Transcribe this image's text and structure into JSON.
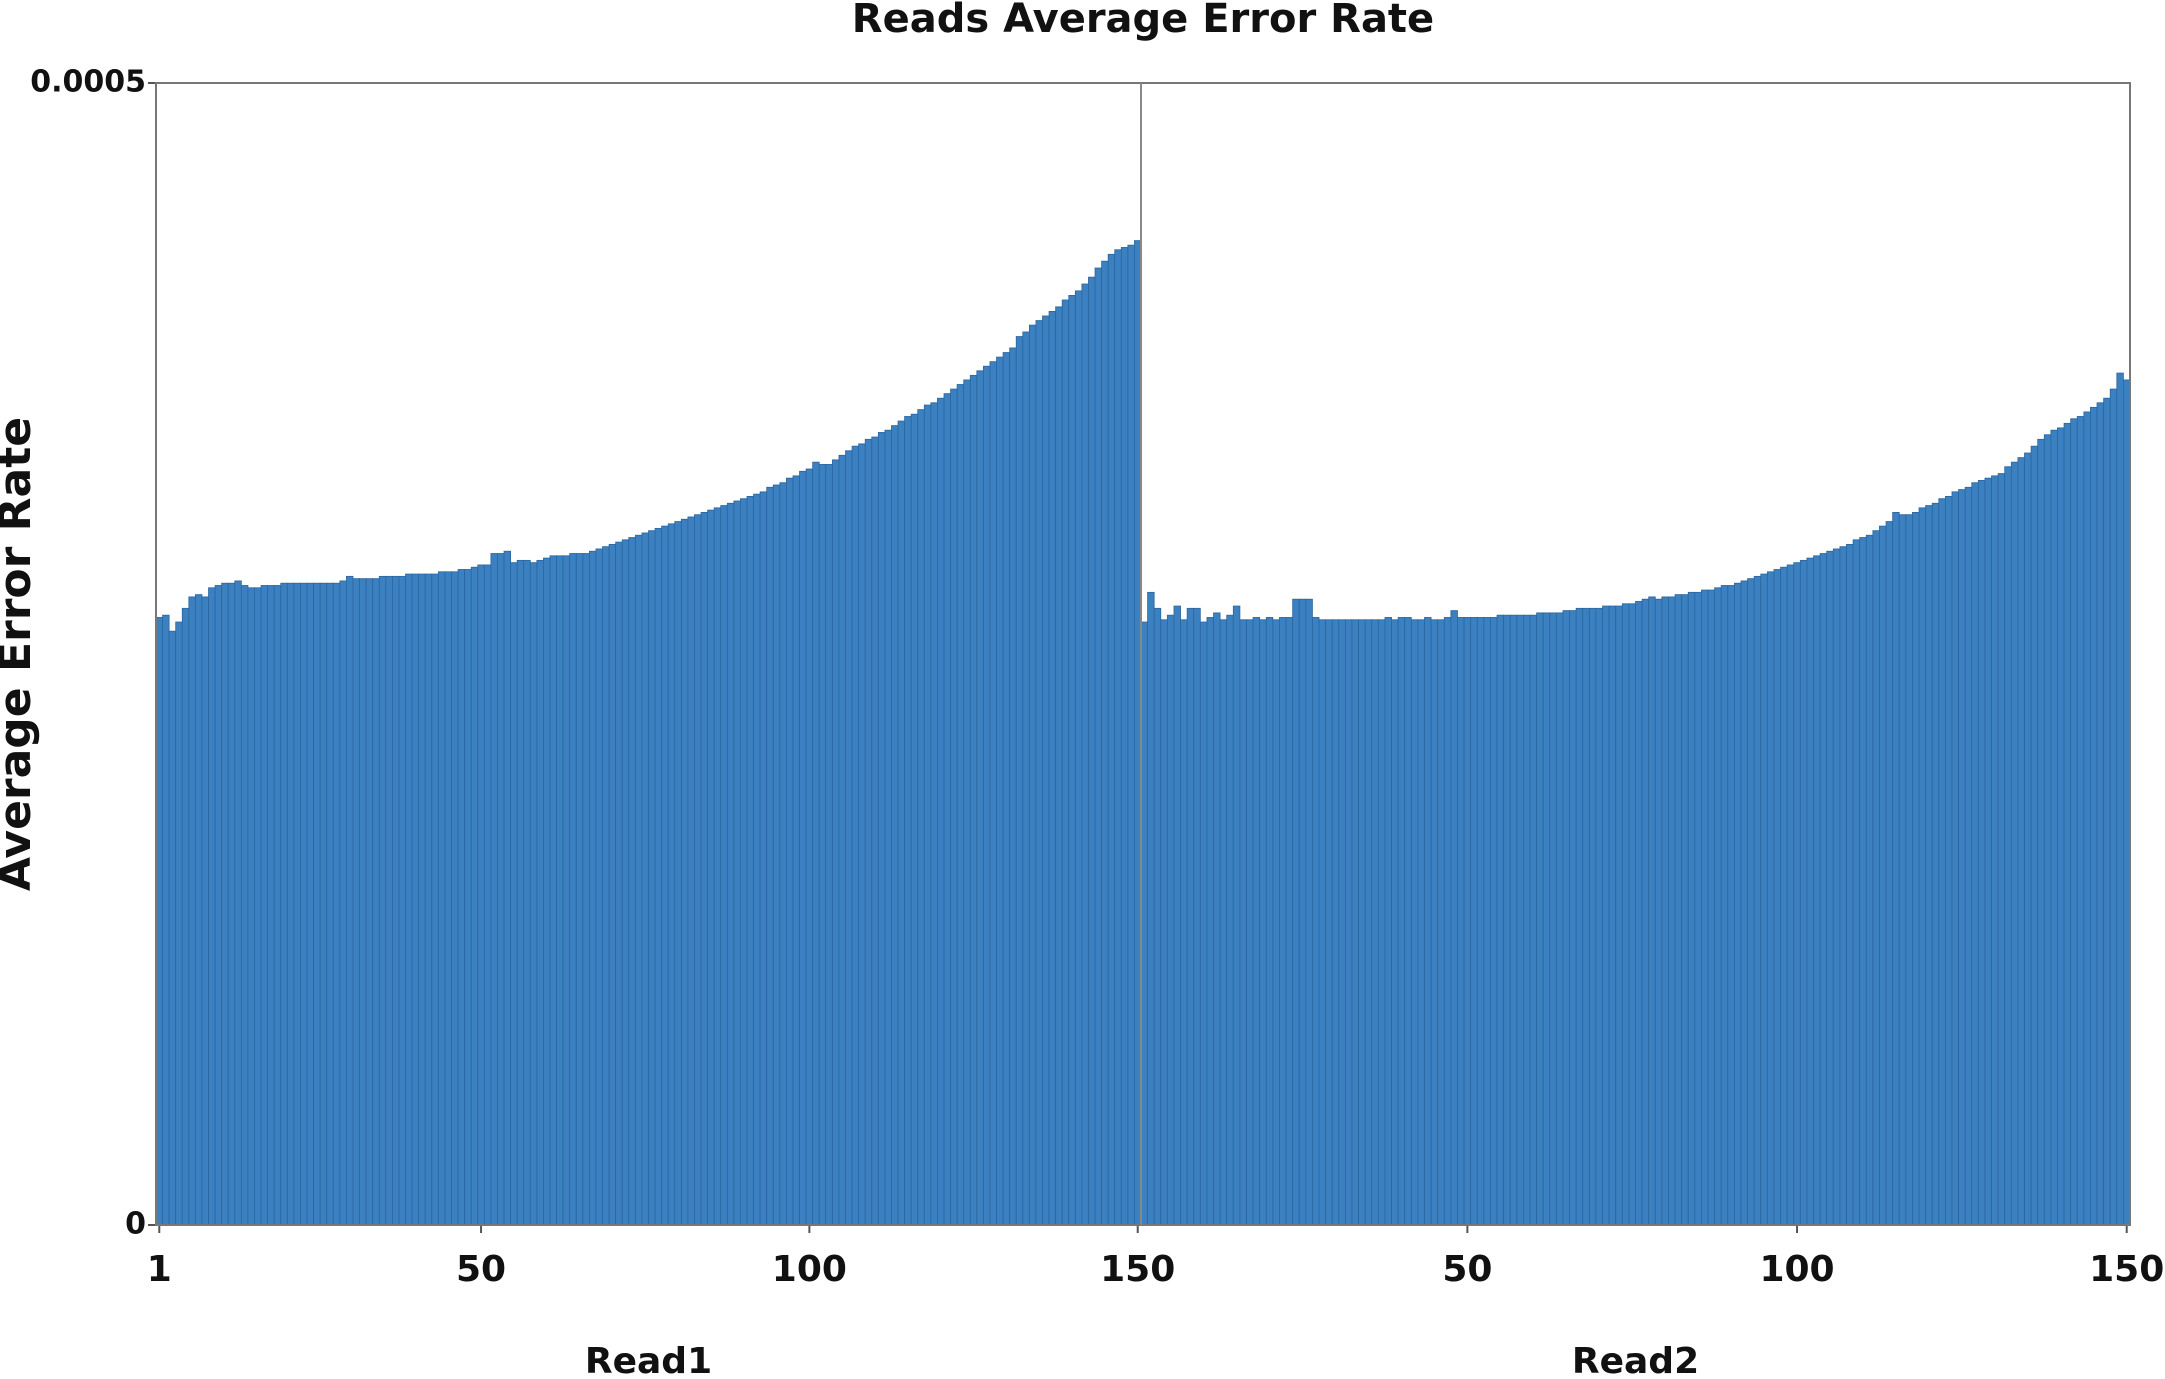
{
  "chart_data": [
    {
      "type": "bar",
      "title": "Reads Average Error Rate",
      "ylabel": "Average Error Rate",
      "xlabel": "Read1",
      "color": "#3b80c0",
      "ylim": [
        0,
        0.0005
      ],
      "yticks": [
        0,
        0.0005
      ],
      "xlim": [
        0.5,
        150.5
      ],
      "xticks": [
        1,
        50,
        100,
        150
      ],
      "x": [
        1,
        2,
        3,
        4,
        5,
        6,
        7,
        8,
        9,
        10,
        11,
        12,
        13,
        14,
        15,
        16,
        17,
        18,
        19,
        20,
        21,
        22,
        23,
        24,
        25,
        26,
        27,
        28,
        29,
        30,
        31,
        32,
        33,
        34,
        35,
        36,
        37,
        38,
        39,
        40,
        41,
        42,
        43,
        44,
        45,
        46,
        47,
        48,
        49,
        50,
        51,
        52,
        53,
        54,
        55,
        56,
        57,
        58,
        59,
        60,
        61,
        62,
        63,
        64,
        65,
        66,
        67,
        68,
        69,
        70,
        71,
        72,
        73,
        74,
        75,
        76,
        77,
        78,
        79,
        80,
        81,
        82,
        83,
        84,
        85,
        86,
        87,
        88,
        89,
        90,
        91,
        92,
        93,
        94,
        95,
        96,
        97,
        98,
        99,
        100,
        101,
        102,
        103,
        104,
        105,
        106,
        107,
        108,
        109,
        110,
        111,
        112,
        113,
        114,
        115,
        116,
        117,
        118,
        119,
        120,
        121,
        122,
        123,
        124,
        125,
        126,
        127,
        128,
        129,
        130,
        131,
        132,
        133,
        134,
        135,
        136,
        137,
        138,
        139,
        140,
        141,
        142,
        143,
        144,
        145,
        146,
        147,
        148,
        149,
        150
      ],
      "values": [
        0.000266,
        0.000267,
        0.00026,
        0.000264,
        0.00027,
        0.000275,
        0.000276,
        0.000275,
        0.000279,
        0.00028,
        0.000281,
        0.000281,
        0.000282,
        0.00028,
        0.000279,
        0.000279,
        0.00028,
        0.00028,
        0.00028,
        0.000281,
        0.000281,
        0.000281,
        0.000281,
        0.000281,
        0.000281,
        0.000281,
        0.000281,
        0.000281,
        0.000282,
        0.000284,
        0.000283,
        0.000283,
        0.000283,
        0.000283,
        0.000284,
        0.000284,
        0.000284,
        0.000284,
        0.000285,
        0.000285,
        0.000285,
        0.000285,
        0.000285,
        0.000286,
        0.000286,
        0.000286,
        0.000287,
        0.000287,
        0.000288,
        0.000289,
        0.000289,
        0.000294,
        0.000294,
        0.000295,
        0.00029,
        0.000291,
        0.000291,
        0.00029,
        0.000291,
        0.000292,
        0.000293,
        0.000293,
        0.000293,
        0.000294,
        0.000294,
        0.000294,
        0.000295,
        0.000296,
        0.000297,
        0.000298,
        0.000299,
        0.0003,
        0.000301,
        0.000302,
        0.000303,
        0.000304,
        0.000305,
        0.000306,
        0.000307,
        0.000308,
        0.000309,
        0.00031,
        0.000311,
        0.000312,
        0.000313,
        0.000314,
        0.000315,
        0.000316,
        0.000317,
        0.000318,
        0.000319,
        0.00032,
        0.000321,
        0.000323,
        0.000324,
        0.000325,
        0.000327,
        0.000328,
        0.00033,
        0.000331,
        0.000334,
        0.000333,
        0.000333,
        0.000335,
        0.000337,
        0.000339,
        0.000341,
        0.000342,
        0.000344,
        0.000345,
        0.000347,
        0.000348,
        0.00035,
        0.000352,
        0.000354,
        0.000355,
        0.000357,
        0.000359,
        0.00036,
        0.000362,
        0.000364,
        0.000366,
        0.000368,
        0.00037,
        0.000372,
        0.000374,
        0.000376,
        0.000378,
        0.00038,
        0.000382,
        0.000384,
        0.000389,
        0.000391,
        0.000394,
        0.000396,
        0.000398,
        0.0004,
        0.000402,
        0.000405,
        0.000407,
        0.000409,
        0.000412,
        0.000415,
        0.000419,
        0.000422,
        0.000425,
        0.000427,
        0.000428,
        0.000429,
        0.000431
      ]
    },
    {
      "type": "bar",
      "xlabel": "Read2",
      "color": "#3b80c0",
      "ylim": [
        0,
        0.0005
      ],
      "xlim": [
        0.5,
        150.5
      ],
      "xticks": [
        50,
        100,
        150
      ],
      "x": [
        1,
        2,
        3,
        4,
        5,
        6,
        7,
        8,
        9,
        10,
        11,
        12,
        13,
        14,
        15,
        16,
        17,
        18,
        19,
        20,
        21,
        22,
        23,
        24,
        25,
        26,
        27,
        28,
        29,
        30,
        31,
        32,
        33,
        34,
        35,
        36,
        37,
        38,
        39,
        40,
        41,
        42,
        43,
        44,
        45,
        46,
        47,
        48,
        49,
        50,
        51,
        52,
        53,
        54,
        55,
        56,
        57,
        58,
        59,
        60,
        61,
        62,
        63,
        64,
        65,
        66,
        67,
        68,
        69,
        70,
        71,
        72,
        73,
        74,
        75,
        76,
        77,
        78,
        79,
        80,
        81,
        82,
        83,
        84,
        85,
        86,
        87,
        88,
        89,
        90,
        91,
        92,
        93,
        94,
        95,
        96,
        97,
        98,
        99,
        100,
        101,
        102,
        103,
        104,
        105,
        106,
        107,
        108,
        109,
        110,
        111,
        112,
        113,
        114,
        115,
        116,
        117,
        118,
        119,
        120,
        121,
        122,
        123,
        124,
        125,
        126,
        127,
        128,
        129,
        130,
        131,
        132,
        133,
        134,
        135,
        136,
        137,
        138,
        139,
        140,
        141,
        142,
        143,
        144,
        145,
        146,
        147,
        148,
        149,
        150
      ],
      "values": [
        0.000264,
        0.000277,
        0.00027,
        0.000265,
        0.000267,
        0.000271,
        0.000265,
        0.00027,
        0.00027,
        0.000264,
        0.000266,
        0.000268,
        0.000265,
        0.000267,
        0.000271,
        0.000265,
        0.000265,
        0.000266,
        0.000265,
        0.000266,
        0.000265,
        0.000266,
        0.000266,
        0.000274,
        0.000274,
        0.000274,
        0.000266,
        0.000265,
        0.000265,
        0.000265,
        0.000265,
        0.000265,
        0.000265,
        0.000265,
        0.000265,
        0.000265,
        0.000265,
        0.000266,
        0.000265,
        0.000266,
        0.000266,
        0.000265,
        0.000265,
        0.000266,
        0.000265,
        0.000265,
        0.000266,
        0.000269,
        0.000266,
        0.000266,
        0.000266,
        0.000266,
        0.000266,
        0.000266,
        0.000267,
        0.000267,
        0.000267,
        0.000267,
        0.000267,
        0.000267,
        0.000268,
        0.000268,
        0.000268,
        0.000268,
        0.000269,
        0.000269,
        0.00027,
        0.00027,
        0.00027,
        0.00027,
        0.000271,
        0.000271,
        0.000271,
        0.000272,
        0.000272,
        0.000273,
        0.000274,
        0.000275,
        0.000274,
        0.000275,
        0.000275,
        0.000276,
        0.000276,
        0.000277,
        0.000277,
        0.000278,
        0.000278,
        0.000279,
        0.00028,
        0.00028,
        0.000281,
        0.000282,
        0.000283,
        0.000284,
        0.000285,
        0.000286,
        0.000287,
        0.000288,
        0.000289,
        0.00029,
        0.000291,
        0.000292,
        0.000293,
        0.000294,
        0.000295,
        0.000296,
        0.000297,
        0.000298,
        0.0003,
        0.000301,
        0.000302,
        0.000304,
        0.000306,
        0.000308,
        0.000312,
        0.000311,
        0.000311,
        0.000312,
        0.000314,
        0.000315,
        0.000316,
        0.000318,
        0.000319,
        0.000321,
        0.000322,
        0.000323,
        0.000325,
        0.000326,
        0.000327,
        0.000328,
        0.000329,
        0.000332,
        0.000334,
        0.000336,
        0.000338,
        0.000341,
        0.000344,
        0.000346,
        0.000348,
        0.000349,
        0.000351,
        0.000353,
        0.000354,
        0.000356,
        0.000358,
        0.00036,
        0.000362,
        0.000366,
        0.000373,
        0.00037
      ]
    }
  ]
}
